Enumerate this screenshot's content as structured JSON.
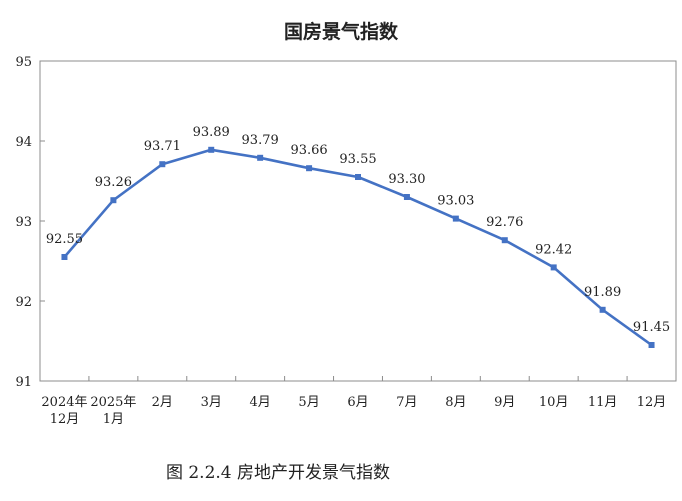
{
  "chart_data": {
    "type": "line",
    "title": "国房景气指数",
    "caption": "图 2.2.4  房地产开发景气指数",
    "categories": [
      [
        "2024年",
        "12月"
      ],
      [
        "2025年",
        "1月"
      ],
      [
        "2月"
      ],
      [
        "3月"
      ],
      [
        "4月"
      ],
      [
        "5月"
      ],
      [
        "6月"
      ],
      [
        "7月"
      ],
      [
        "8月"
      ],
      [
        "9月"
      ],
      [
        "10月"
      ],
      [
        "11月"
      ],
      [
        "12月"
      ]
    ],
    "series": [
      {
        "values": [
          92.55,
          93.26,
          93.71,
          93.89,
          93.79,
          93.66,
          93.55,
          93.3,
          93.03,
          92.76,
          92.42,
          91.89,
          91.45
        ],
        "labels": [
          "92.55",
          "93.26",
          "93.71",
          "93.89",
          "93.79",
          "93.66",
          "93.55",
          "93.30",
          "93.03",
          "92.76",
          "92.42",
          "91.89",
          "91.45"
        ],
        "color": "#4472c4"
      }
    ],
    "ylim": [
      91,
      95
    ],
    "yticks": [
      91,
      92,
      93,
      94,
      95
    ],
    "grid": false,
    "legend": "none"
  }
}
